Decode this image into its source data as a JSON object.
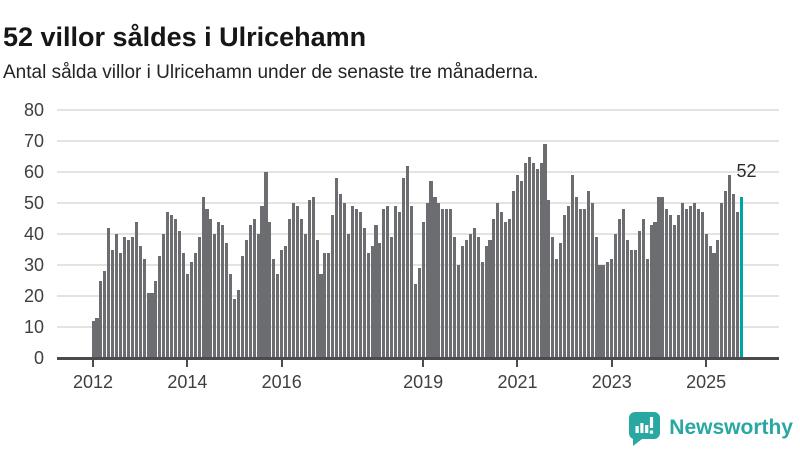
{
  "header": {
    "title": "52 villor såldes i Ulricehamn",
    "subtitle": "Antal sålda villor i Ulricehamn under de senaste tre månaderna."
  },
  "branding": {
    "logo_text": "Newsworthy",
    "logo_color": "#28a7a3",
    "logo_icon": "speech-bubble-bar-chart"
  },
  "chart_data": {
    "type": "bar",
    "title": "52 villor såldes i Ulricehamn",
    "subtitle": "Antal sålda villor i Ulricehamn under de senaste tre månaderna.",
    "ylabel": "",
    "xlabel": "",
    "ylim": [
      0,
      80
    ],
    "grid": "horizontal",
    "y_ticks": [
      0,
      10,
      20,
      30,
      40,
      50,
      60,
      70,
      80
    ],
    "x_ticks": [
      {
        "label": "2012",
        "month_index": 0
      },
      {
        "label": "2014",
        "month_index": 24
      },
      {
        "label": "2016",
        "month_index": 48
      },
      {
        "label": "2019",
        "month_index": 84
      },
      {
        "label": "2021",
        "month_index": 108
      },
      {
        "label": "2023",
        "month_index": 132
      },
      {
        "label": "2025",
        "month_index": 156
      }
    ],
    "bar_color": "#6c6d71",
    "values": [
      12,
      13,
      25,
      28,
      42,
      35,
      40,
      34,
      39,
      38,
      39,
      44,
      36,
      32,
      21,
      21,
      25,
      33,
      40,
      47,
      46,
      45,
      41,
      34,
      27,
      31,
      34,
      39,
      52,
      48,
      45,
      40,
      44,
      43,
      37,
      27,
      19,
      22,
      33,
      38,
      43,
      45,
      40,
      49,
      60,
      44,
      32,
      27,
      35,
      36,
      45,
      50,
      49,
      45,
      40,
      51,
      52,
      38,
      27,
      34,
      34,
      46,
      58,
      53,
      50,
      40,
      49,
      48,
      47,
      42,
      34,
      36,
      43,
      37,
      48,
      49,
      39,
      49,
      47,
      58,
      62,
      49,
      24,
      29,
      44,
      50,
      57,
      52,
      50,
      48,
      48,
      48,
      39,
      30,
      36,
      38,
      40,
      42,
      39,
      31,
      36,
      38,
      45,
      50,
      47,
      44,
      45,
      54,
      59,
      57,
      63,
      65,
      63,
      61,
      63,
      69,
      51,
      39,
      32,
      37,
      46,
      49,
      59,
      52,
      48,
      48,
      54,
      50,
      39,
      30,
      30,
      31,
      32,
      40,
      45,
      48,
      38,
      35,
      35,
      41,
      45,
      32,
      43,
      44,
      52,
      52,
      48,
      46,
      43,
      46,
      50,
      48,
      49,
      50,
      48,
      47,
      40,
      36,
      34,
      38,
      50,
      54,
      59,
      53,
      47,
      52
    ],
    "highlight": {
      "index": 165,
      "value": 52,
      "label": "52",
      "color": "#00a4a0"
    },
    "legend": "none"
  }
}
